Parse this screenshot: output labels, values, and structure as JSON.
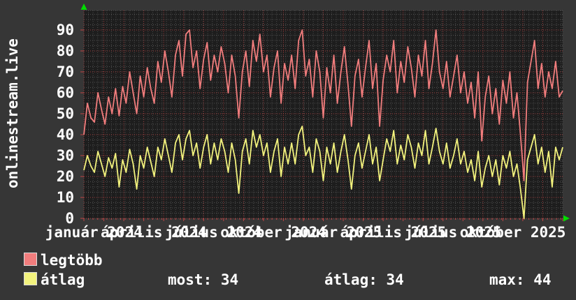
{
  "site_label": "onlinestream.live",
  "colors": {
    "background": "#363636",
    "plot_background": "#1d1d1d",
    "grid_minor": "#4f4f4f",
    "grid_major": "#9e3c3c",
    "axis_tick": "#c04444",
    "text": "#ffffff",
    "arrow": "#00dd00",
    "series_max": "#f17d7d",
    "series_avg": "#f2f27d"
  },
  "legend": {
    "items": [
      {
        "label": "legtöbb",
        "color": "#f17d7d"
      },
      {
        "label": "átlag",
        "color": "#f2f27d"
      }
    ]
  },
  "stats": [
    {
      "label": "most",
      "value": 34,
      "display": "most: 34"
    },
    {
      "label": "átlag",
      "value": 34,
      "display": "átlag: 34"
    },
    {
      "label": "max",
      "value": 44,
      "display": "max: 44"
    }
  ],
  "chart_data": {
    "type": "line",
    "title": "",
    "xlabel": "",
    "ylabel": "onlinestream.live",
    "ylim": [
      0,
      99
    ],
    "y_ticks": [
      0,
      10,
      20,
      30,
      40,
      50,
      60,
      70,
      80,
      90
    ],
    "grid": true,
    "legend_position": "bottom",
    "x_axis": {
      "months_total": 24,
      "first_month_label": "január 2024",
      "last_month_label": "október 2025"
    },
    "x_ticks": [
      {
        "month": 0,
        "label": "január 2024"
      },
      {
        "month": 3,
        "label": "április 2024"
      },
      {
        "month": 6,
        "label": "július 2024"
      },
      {
        "month": 9,
        "label": "október 2024"
      },
      {
        "month": 12,
        "label": "január 2025"
      },
      {
        "month": 15,
        "label": "április 2025"
      },
      {
        "month": 18,
        "label": "július 2025"
      },
      {
        "month": 21,
        "label": "október 2025"
      }
    ],
    "series": [
      {
        "name": "legtöbb",
        "color": "#f17d7d",
        "values": [
          40,
          55,
          48,
          46,
          60,
          52,
          45,
          58,
          50,
          62,
          49,
          63,
          55,
          70,
          60,
          50,
          68,
          58,
          72,
          62,
          55,
          75,
          65,
          80,
          70,
          58,
          78,
          85,
          68,
          88,
          90,
          72,
          80,
          62,
          76,
          84,
          66,
          78,
          70,
          82,
          74,
          60,
          78,
          68,
          48,
          70,
          80,
          63,
          85,
          75,
          88,
          70,
          78,
          58,
          72,
          80,
          55,
          74,
          66,
          78,
          62,
          85,
          90,
          68,
          76,
          58,
          80,
          70,
          48,
          72,
          60,
          78,
          55,
          70,
          82,
          64,
          44,
          68,
          76,
          58,
          72,
          85,
          62,
          74,
          44,
          66,
          78,
          70,
          85,
          60,
          75,
          65,
          82,
          72,
          58,
          78,
          68,
          85,
          62,
          74,
          90,
          70,
          62,
          75,
          58,
          68,
          78,
          60,
          70,
          55,
          65,
          48,
          70,
          37,
          58,
          68,
          50,
          62,
          45,
          66,
          55,
          70,
          48,
          60,
          40,
          18,
          65,
          75,
          85,
          62,
          74,
          58,
          70,
          62,
          75,
          58,
          61
        ]
      },
      {
        "name": "átlag",
        "color": "#f2f27d",
        "values": [
          23,
          30,
          25,
          22,
          32,
          26,
          20,
          29,
          24,
          31,
          15,
          28,
          22,
          33,
          26,
          14,
          30,
          24,
          34,
          27,
          20,
          34,
          28,
          38,
          30,
          22,
          36,
          40,
          28,
          38,
          42,
          30,
          36,
          24,
          34,
          40,
          26,
          36,
          28,
          38,
          32,
          22,
          36,
          28,
          12,
          32,
          38,
          26,
          42,
          34,
          40,
          30,
          36,
          22,
          32,
          38,
          20,
          34,
          26,
          36,
          26,
          40,
          44,
          30,
          34,
          22,
          38,
          32,
          18,
          34,
          26,
          36,
          22,
          32,
          40,
          28,
          14,
          30,
          36,
          24,
          32,
          40,
          26,
          34,
          18,
          28,
          38,
          32,
          42,
          26,
          35,
          28,
          40,
          34,
          24,
          36,
          30,
          42,
          26,
          34,
          43,
          32,
          26,
          36,
          24,
          30,
          38,
          26,
          32,
          22,
          28,
          18,
          32,
          15,
          24,
          30,
          20,
          28,
          16,
          30,
          24,
          32,
          20,
          26,
          14,
          0,
          28,
          34,
          40,
          26,
          34,
          22,
          32,
          15,
          34,
          28,
          34
        ]
      }
    ]
  }
}
